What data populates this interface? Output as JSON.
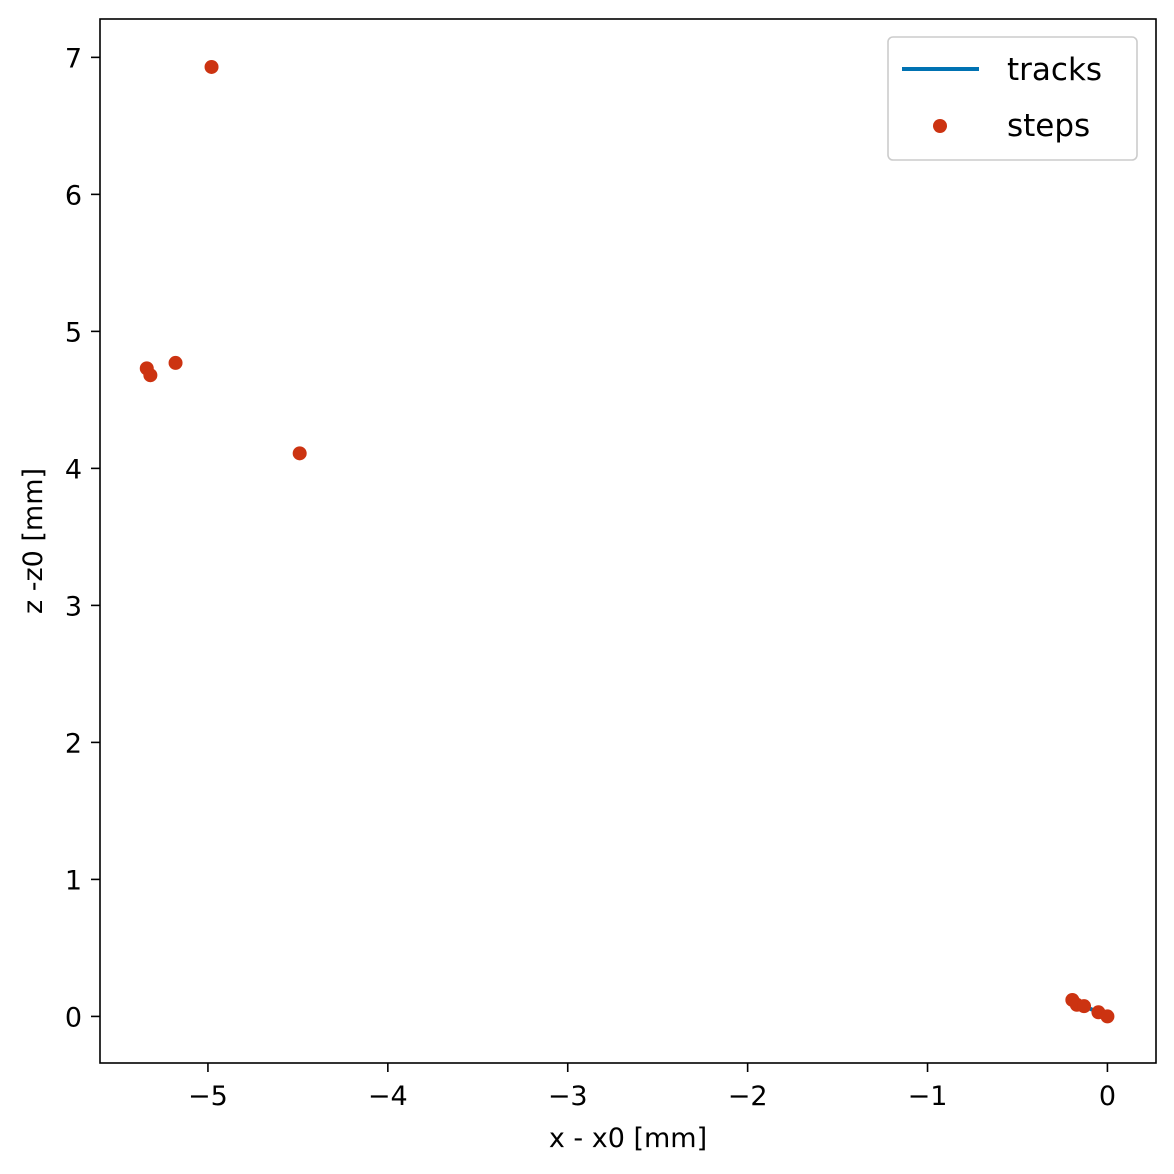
{
  "chart_data": {
    "type": "scatter",
    "xlabel": "x - x0 [mm]",
    "ylabel": "z -z0 [mm]",
    "xlim": [
      -5.6,
      0.27
    ],
    "ylim": [
      -0.34,
      7.28
    ],
    "grid": false,
    "legend_position": "top-right",
    "x_ticks": [
      {
        "value": -5,
        "label": "−5"
      },
      {
        "value": -4,
        "label": "−4"
      },
      {
        "value": -3,
        "label": "−3"
      },
      {
        "value": -2,
        "label": "−2"
      },
      {
        "value": -1,
        "label": "−1"
      },
      {
        "value": 0,
        "label": "0"
      }
    ],
    "y_ticks": [
      {
        "value": 0,
        "label": "0"
      },
      {
        "value": 1,
        "label": "1"
      },
      {
        "value": 2,
        "label": "2"
      },
      {
        "value": 3,
        "label": "3"
      },
      {
        "value": 4,
        "label": "4"
      },
      {
        "value": 5,
        "label": "5"
      },
      {
        "value": 6,
        "label": "6"
      },
      {
        "value": 7,
        "label": "7"
      }
    ],
    "series": [
      {
        "name": "tracks",
        "kind": "line",
        "color": "#0072b2",
        "points": [
          {
            "x": -0.195,
            "y": 0.12
          },
          {
            "x": -0.13,
            "y": 0.075
          },
          {
            "x": -0.05,
            "y": 0.03
          },
          {
            "x": 0.0,
            "y": 0.0
          }
        ]
      },
      {
        "name": "steps",
        "kind": "scatter",
        "color": "#cc3311",
        "points": [
          {
            "x": -4.98,
            "y": 6.93
          },
          {
            "x": -5.34,
            "y": 4.73
          },
          {
            "x": -5.32,
            "y": 4.68
          },
          {
            "x": -5.18,
            "y": 4.77
          },
          {
            "x": -4.49,
            "y": 4.11
          },
          {
            "x": -0.195,
            "y": 0.12
          },
          {
            "x": -0.17,
            "y": 0.085
          },
          {
            "x": -0.13,
            "y": 0.075
          },
          {
            "x": -0.05,
            "y": 0.03
          },
          {
            "x": 0.0,
            "y": 0.0
          }
        ]
      }
    ]
  }
}
